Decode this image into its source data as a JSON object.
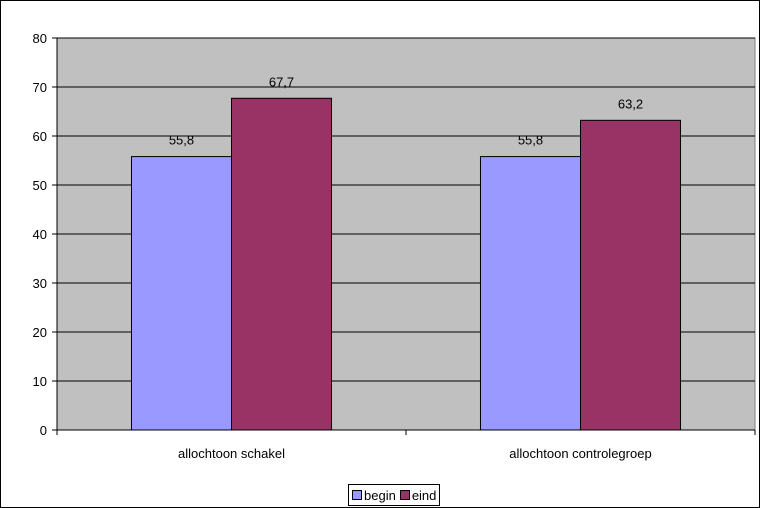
{
  "chart_data": {
    "type": "bar",
    "categories": [
      "allochtoon schakel",
      "allochtoon controlegroep"
    ],
    "series": [
      {
        "name": "begin",
        "values": [
          55.8,
          55.8
        ],
        "labels": [
          "55,8",
          "55,8"
        ],
        "color": "#9999ff"
      },
      {
        "name": "eind",
        "values": [
          67.7,
          63.2
        ],
        "labels": [
          "67,7",
          "63,2"
        ],
        "color": "#993366"
      }
    ],
    "ylim": [
      0,
      80
    ],
    "yticks": [
      0,
      10,
      20,
      30,
      40,
      50,
      60,
      70,
      80
    ],
    "grid": true,
    "plot_background": "#c0c0c0",
    "legend_position": "bottom"
  }
}
